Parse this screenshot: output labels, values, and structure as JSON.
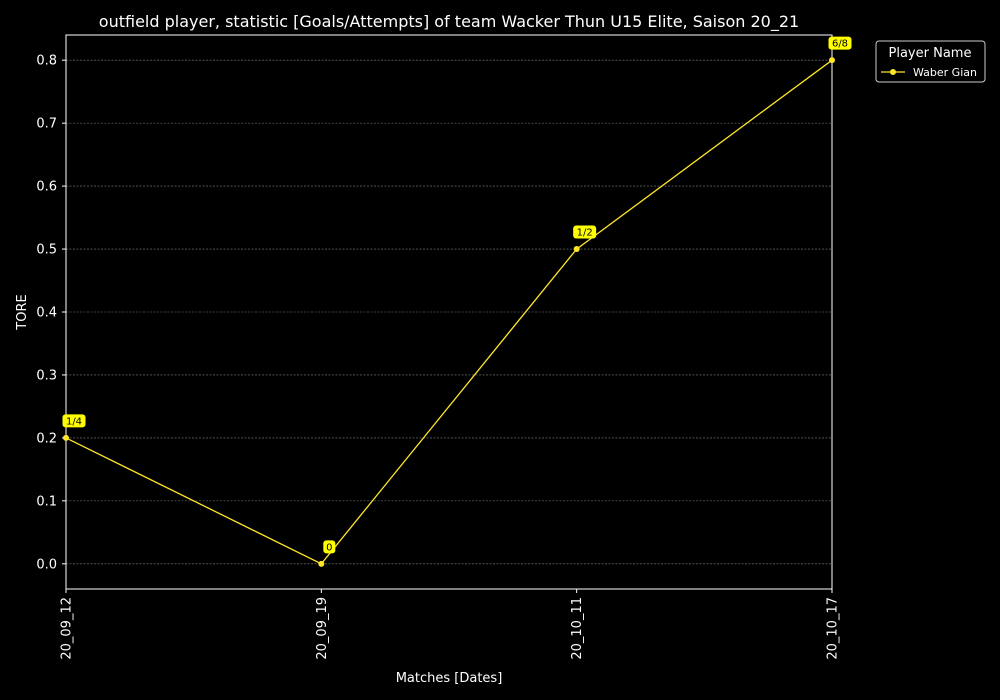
{
  "chart_data": {
    "type": "line",
    "title": "outfield player, statistic [Goals/Attempts] of team Wacker Thun U15 Elite, Saison 20_21",
    "xlabel": "Matches [Dates]",
    "ylabel": "TORE",
    "categories": [
      "20_09_12",
      "20_09_19",
      "20_10_11",
      "20_10_17"
    ],
    "ylim": [
      -0.04,
      0.84
    ],
    "yticks": [
      "0.0",
      "0.1",
      "0.2",
      "0.3",
      "0.4",
      "0.5",
      "0.6",
      "0.7",
      "0.8"
    ],
    "grid": true,
    "legend": {
      "title": "Player Name",
      "placement": "outside-top-right"
    },
    "series": [
      {
        "name": "Waber Gian",
        "color": "#ffe629",
        "values": [
          0.2,
          0.0,
          0.5,
          0.8
        ],
        "labels": [
          "1/4",
          "0",
          "1/2",
          "6/8"
        ]
      }
    ]
  },
  "colors": {
    "background": "#000000",
    "foreground": "#ffffff",
    "grid": "#7f7f7f",
    "series": "#ffe629",
    "label_box": "#ffff00"
  }
}
